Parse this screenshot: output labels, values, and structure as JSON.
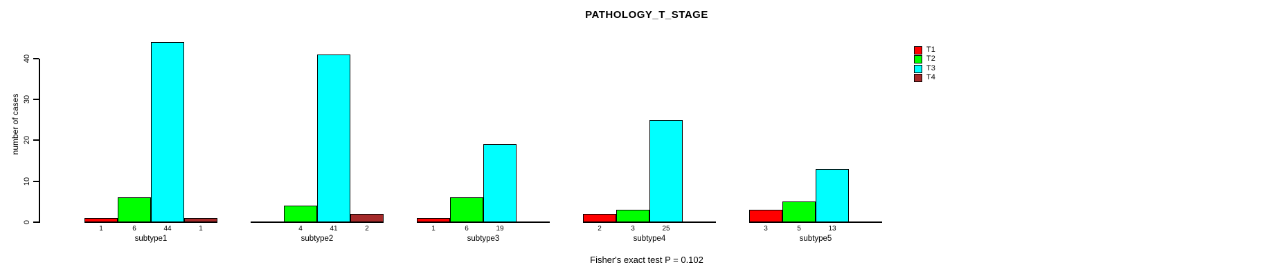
{
  "title": "PATHOLOGY_T_STAGE",
  "annotation": "Fisher's exact test P = 0.102",
  "y_axis": {
    "label": "number of cases",
    "ticks": [
      0,
      10,
      20,
      30,
      40
    ]
  },
  "legend": {
    "position": "top-right",
    "items": [
      {
        "label": "T1",
        "color": "#FF0000"
      },
      {
        "label": "T2",
        "color": "#00FF00"
      },
      {
        "label": "T3",
        "color": "#00FFFF"
      },
      {
        "label": "T4",
        "color": "#A52A2A"
      }
    ]
  },
  "chart_data": {
    "type": "bar",
    "title": "PATHOLOGY_T_STAGE",
    "categories": [
      "subtype1",
      "subtype2",
      "subtype3",
      "subtype4",
      "subtype5"
    ],
    "series": [
      {
        "name": "T1",
        "color": "#FF0000",
        "values": [
          1,
          0,
          1,
          2,
          3
        ]
      },
      {
        "name": "T2",
        "color": "#00FF00",
        "values": [
          6,
          4,
          6,
          3,
          5
        ]
      },
      {
        "name": "T3",
        "color": "#00FFFF",
        "values": [
          44,
          41,
          19,
          25,
          13
        ]
      },
      {
        "name": "T4",
        "color": "#A52A2A",
        "values": [
          1,
          2,
          0,
          0,
          0
        ]
      }
    ],
    "xlabel": "",
    "ylabel": "number of cases",
    "yticks": [
      0,
      10,
      20,
      30,
      40
    ],
    "ylim": [
      0,
      44
    ],
    "grid": false,
    "bars_with_zero_value_hidden": true,
    "bar_value_labels_shown": true,
    "legend_position": "top-right",
    "annotation": "Fisher's exact test P = 0.102"
  }
}
